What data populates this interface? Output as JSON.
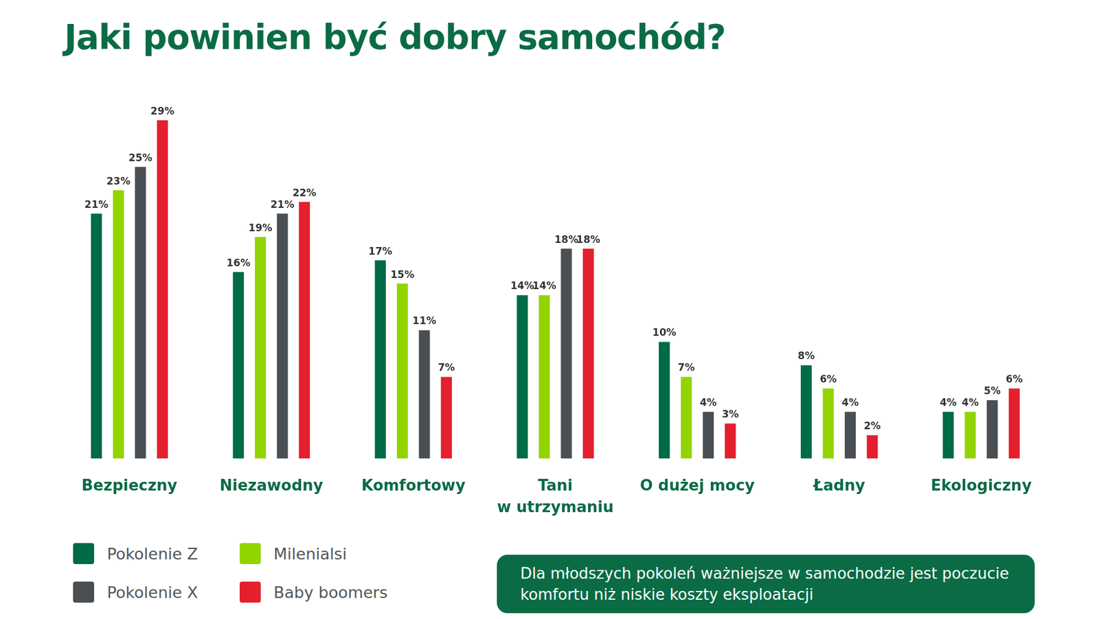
{
  "chart_data": {
    "type": "bar",
    "title": "Jaki powinien być dobry samochód?",
    "categories": [
      "Bezpieczny",
      "Niezawodny",
      "Komfortowy",
      "Tani w utrzymaniu",
      "O dużej mocy",
      "Ładny",
      "Ekologiczny"
    ],
    "series": [
      {
        "name": "Pokolenie Z",
        "color": "#006b47",
        "values": [
          21,
          16,
          17,
          14,
          10,
          8,
          4
        ],
        "value_labels": [
          "21%",
          "16%",
          "17%",
          "14%",
          "10%",
          "8%",
          "4%"
        ]
      },
      {
        "name": "Milenialsi",
        "color": "#92d400",
        "values": [
          23,
          19,
          15,
          14,
          7,
          6,
          4
        ],
        "value_labels": [
          "23%",
          "19%",
          "15%",
          "14%",
          "7%",
          "6%",
          "4%"
        ]
      },
      {
        "name": "Pokolenie X",
        "color": "#4a4f54",
        "values": [
          25,
          21,
          11,
          18,
          4,
          4,
          5
        ],
        "value_labels": [
          "25%",
          "21%",
          "11%",
          "18%",
          "4%",
          "4%",
          "5%"
        ]
      },
      {
        "name": "Baby boomers",
        "color": "#e4202e",
        "values": [
          29,
          22,
          7,
          18,
          3,
          2,
          6
        ],
        "value_labels": [
          "29%",
          "22%",
          "7%",
          "18%",
          "3%",
          "2%",
          "6%"
        ]
      }
    ],
    "ylim": [
      0,
      30
    ],
    "grid": false,
    "tick_labels": "x",
    "data_labels": true,
    "legend": "bottom-left",
    "annotation": "Dla młodszych pokoleń ważniejsze w samochodzie jest poczucie komfortu niż niskie koszty eksploatacji"
  }
}
